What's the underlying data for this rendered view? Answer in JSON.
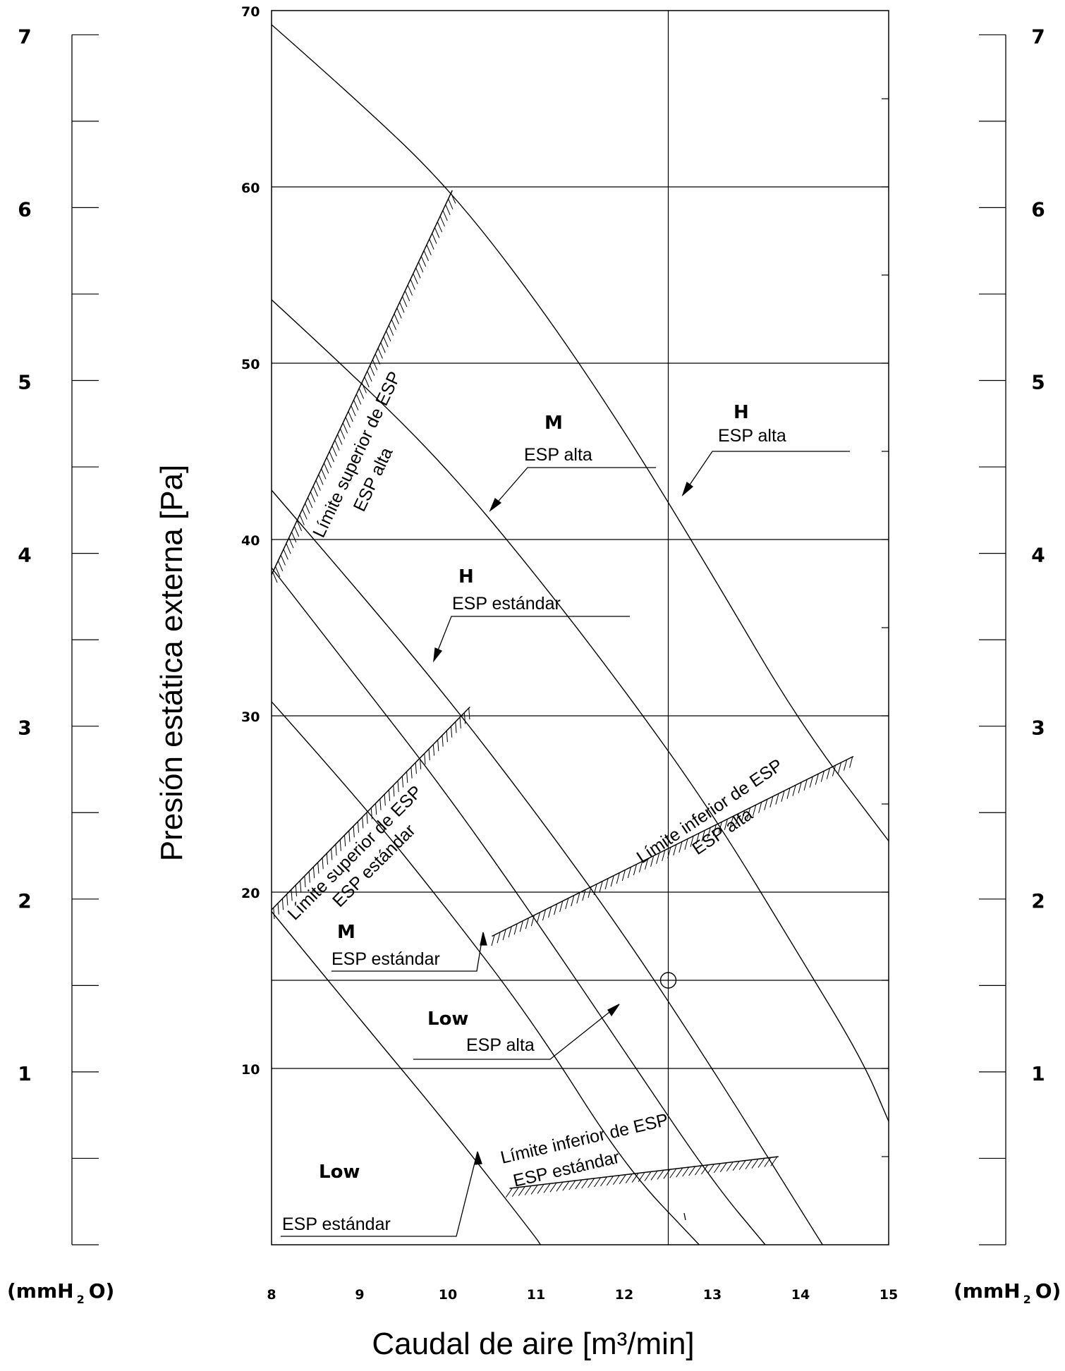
{
  "chart_data": {
    "type": "line",
    "xlabel": "Caudal de aire [m³/min]",
    "ylabel": "Presión estática externa [Pa]",
    "x_ticks": [
      8,
      9,
      10,
      11,
      12,
      13,
      14,
      15
    ],
    "y_ticks": [
      10,
      20,
      30,
      40,
      50,
      60,
      70
    ],
    "xlim": [
      8,
      15
    ],
    "ylim": [
      0,
      70
    ],
    "secondary_axis": {
      "unit_main": "(mmH",
      "unit_sub": "2",
      "unit_end": "O)",
      "ticks": [
        1,
        2,
        3,
        4,
        5,
        6,
        7
      ]
    },
    "grid_y": [
      10,
      15,
      20,
      30,
      40,
      50,
      60
    ],
    "grid_x": [
      12.5
    ],
    "operating_point": {
      "x": 12.5,
      "y": 15
    },
    "series": [
      {
        "x": [
          8,
          9,
          10,
          11,
          12,
          13,
          14,
          15
        ],
        "y": [
          69.2,
          64.8,
          60.0,
          53.6,
          46.2,
          38.0,
          29.5,
          22.9
        ]
      },
      {
        "x": [
          8,
          9,
          10,
          11,
          12,
          13,
          14,
          14.7,
          15
        ],
        "y": [
          53.6,
          49.0,
          44.0,
          38.0,
          31.5,
          24.5,
          16.3,
          10.5,
          7.0
        ]
      },
      {
        "x": [
          8,
          9,
          10,
          11,
          12,
          13,
          14,
          14.25
        ],
        "y": [
          42.8,
          37.0,
          31.0,
          24.5,
          17.6,
          10.0,
          2.0,
          0
        ]
      },
      {
        "x": [
          8,
          9,
          10,
          11,
          12,
          13,
          13.6
        ],
        "y": [
          38.4,
          32.0,
          25.5,
          18.4,
          11.0,
          3.6,
          0
        ]
      },
      {
        "x": [
          8,
          9,
          10,
          11,
          12,
          12.85
        ],
        "y": [
          30.8,
          25.2,
          19.0,
          12.4,
          4.5,
          0
        ]
      },
      {
        "x": [
          8,
          9,
          10,
          11,
          11.05
        ],
        "y": [
          18.9,
          12.8,
          6.8,
          0.4,
          0
        ]
      }
    ],
    "limit_lines": [
      {
        "x": [
          8,
          10.05
        ],
        "y": [
          38,
          59.8
        ]
      },
      {
        "x": [
          8,
          10.25
        ],
        "y": [
          19,
          30.5
        ]
      },
      {
        "x": [
          10.5,
          14.6
        ],
        "y": [
          17.5,
          27.7
        ]
      },
      {
        "x": [
          10.7,
          13.75
        ],
        "y": [
          3.2,
          5.0
        ]
      }
    ],
    "annotations": {
      "h_alta_speed": "H",
      "h_alta_mode": "ESP alta",
      "m_alta_speed": "M",
      "m_alta_mode": "ESP alta",
      "h_std_speed": "H",
      "h_std_mode": "ESP estándar",
      "m_std_speed": "M",
      "m_std_mode": "ESP estándar",
      "low_alta_speed": "Low",
      "low_alta_mode": "ESP alta",
      "low_std_speed": "Low",
      "low_std_mode": "ESP estándar",
      "upper_alta_1": "Límite superior de ESP",
      "upper_alta_2": "ESP alta",
      "upper_std_1": "Límite superior de ESP",
      "upper_std_2": "ESP estándar",
      "lower_alta_1": "Límite inferior de ESP",
      "lower_alta_2": "ESP alta",
      "lower_std_1": "Límite inferior de ESP",
      "lower_std_2": "ESP estándar"
    }
  }
}
